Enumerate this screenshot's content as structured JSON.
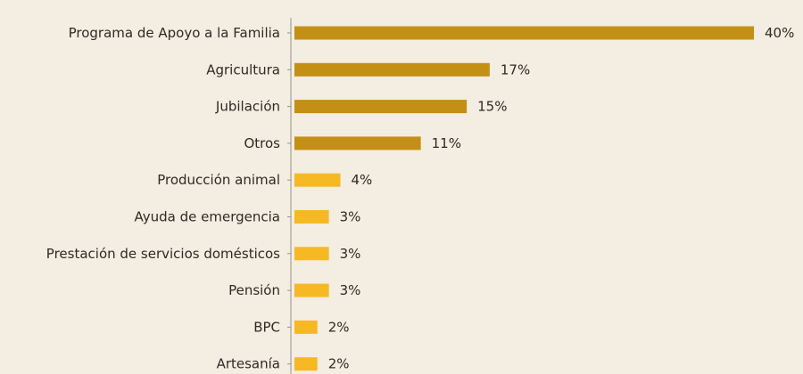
{
  "chart_data": {
    "type": "bar",
    "orientation": "horizontal",
    "title": "",
    "xlabel": "",
    "ylabel": "",
    "xlim": [
      0,
      40
    ],
    "grid": false,
    "categories": [
      "Programa de Apoyo a la Familia",
      "Agricultura",
      "Jubilación",
      "Otros",
      "Producción animal",
      "Ayuda de emergencia",
      "Prestación de servicios domésticos",
      "Pensión",
      "BPC",
      "Artesanía"
    ],
    "values": [
      40,
      17,
      15,
      11,
      4,
      3,
      3,
      3,
      2,
      2
    ],
    "value_labels": [
      "40%",
      "17%",
      "15%",
      "11%",
      "4%",
      "3%",
      "3%",
      "3%",
      "2%",
      "2%"
    ],
    "colors": {
      "dark_bar": "#c48f15",
      "light_bar": "#f6b923",
      "axis": "#9a9384",
      "text": "#2f2a22",
      "background": "#f3ede2"
    },
    "dark_bar_count": 4
  }
}
